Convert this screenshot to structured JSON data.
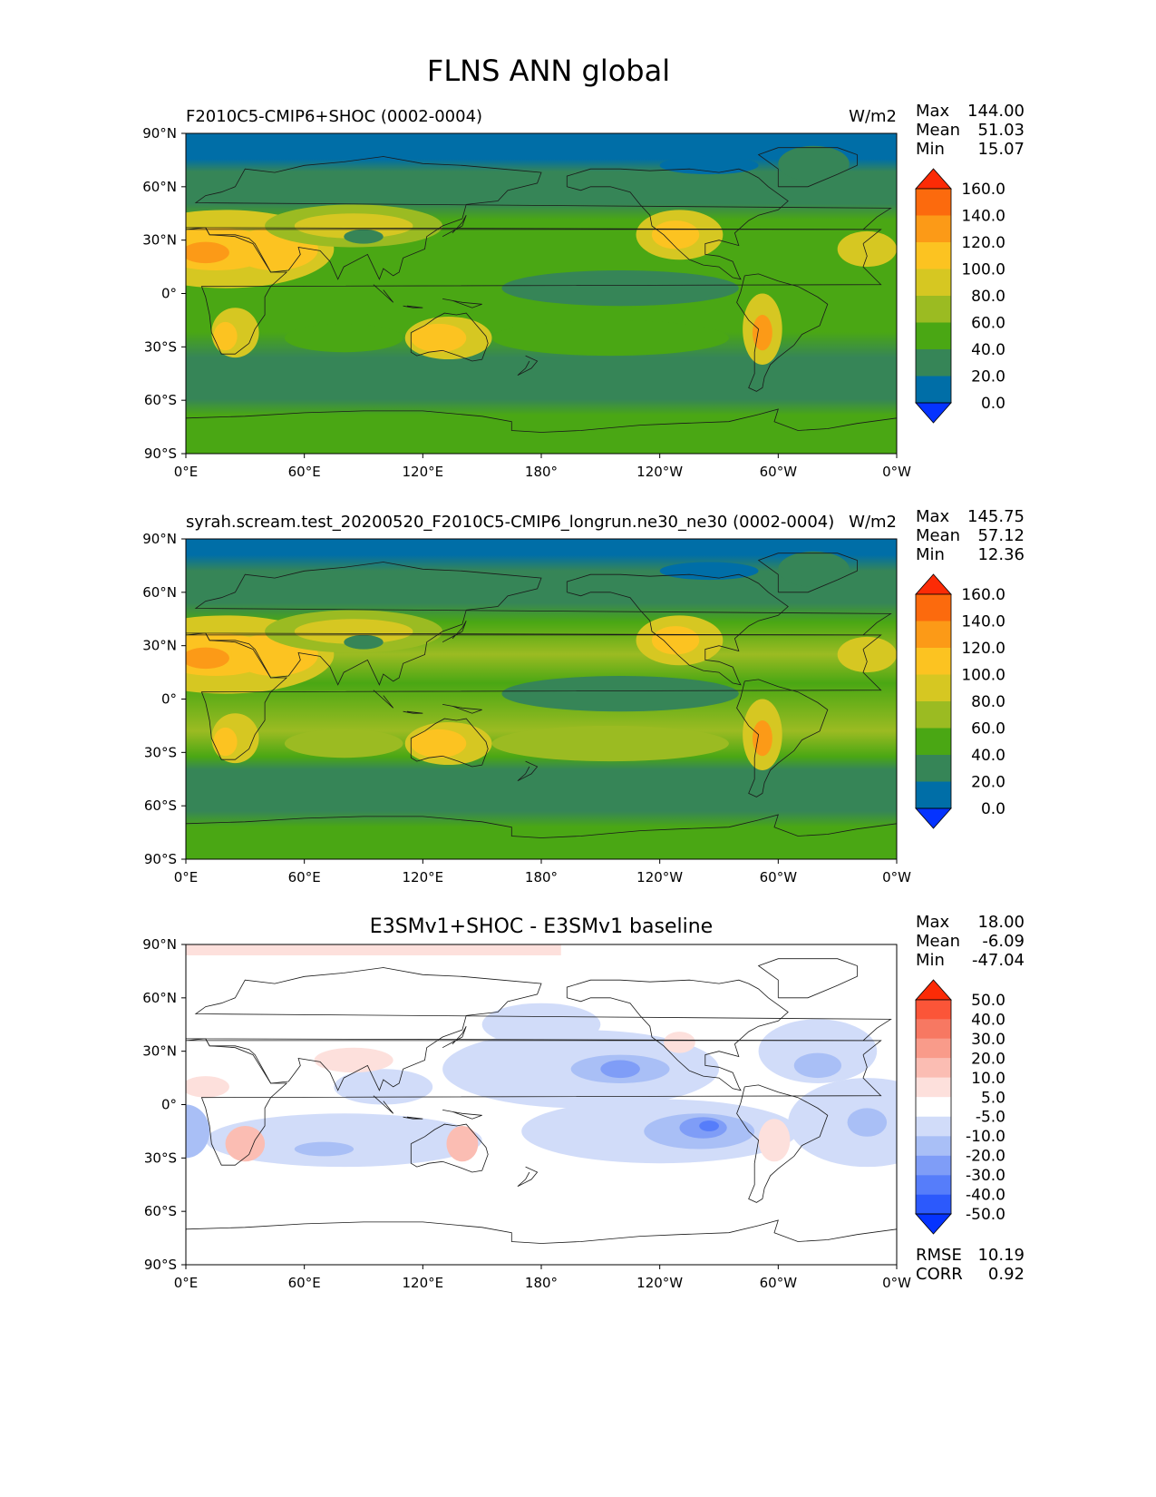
{
  "figure": {
    "title": "FLNS ANN global"
  },
  "map_ticks": {
    "x": [
      "0°E",
      "60°E",
      "120°E",
      "180°",
      "120°W",
      "60°W",
      "0°W"
    ],
    "y": [
      "90°N",
      "60°N",
      "30°N",
      "0°",
      "30°S",
      "60°S",
      "90°S"
    ]
  },
  "chart_data": [
    {
      "type": "heatmap",
      "title": "F2010C5-CMIP6+SHOC (0002-0004)",
      "units": "W/m2",
      "stats": {
        "Max": "144.00",
        "Mean": "51.03",
        "Min": "15.07"
      },
      "stat_labels": [
        "Max",
        "Mean",
        "Min"
      ],
      "x_range": [
        0,
        360
      ],
      "y_range": [
        -90,
        90
      ],
      "colorbar": {
        "levels": [
          "0.0",
          "20.0",
          "40.0",
          "60.0",
          "80.0",
          "100.0",
          "120.0",
          "140.0",
          "160.0"
        ],
        "colors": [
          "#0533ff",
          "#006ea7",
          "#368557",
          "#4aa714",
          "#9bbb22",
          "#d6c722",
          "#fcc321",
          "#fc9a17",
          "#fc6a0d",
          "#fc2b06"
        ]
      }
    },
    {
      "type": "heatmap",
      "title": "syrah.scream.test_20200520_F2010C5-CMIP6_longrun.ne30_ne30 (0002-0004)",
      "units": "W/m2",
      "stats": {
        "Max": "145.75",
        "Mean": "57.12",
        "Min": "12.36"
      },
      "stat_labels": [
        "Max",
        "Mean",
        "Min"
      ],
      "x_range": [
        0,
        360
      ],
      "y_range": [
        -90,
        90
      ],
      "colorbar": {
        "levels": [
          "0.0",
          "20.0",
          "40.0",
          "60.0",
          "80.0",
          "100.0",
          "120.0",
          "140.0",
          "160.0"
        ],
        "colors": [
          "#0533ff",
          "#006ea7",
          "#368557",
          "#4aa714",
          "#9bbb22",
          "#d6c722",
          "#fcc321",
          "#fc9a17",
          "#fc6a0d",
          "#fc2b06"
        ]
      }
    },
    {
      "type": "heatmap",
      "title": "E3SMv1+SHOC - E3SMv1 baseline",
      "units": "",
      "stats": {
        "Max": "18.00",
        "Mean": "-6.09",
        "Min": "-47.04"
      },
      "stat_labels": [
        "Max",
        "Mean",
        "Min"
      ],
      "metrics": {
        "RMSE": "10.19",
        "CORR": "0.92"
      },
      "x_range": [
        0,
        360
      ],
      "y_range": [
        -90,
        90
      ],
      "colorbar": {
        "levels": [
          "-50.0",
          "-40.0",
          "-30.0",
          "-20.0",
          "-10.0",
          "-5.0",
          "5.0",
          "10.0",
          "20.0",
          "30.0",
          "40.0",
          "50.0"
        ],
        "colors": [
          "#0533ff",
          "#2c59fc",
          "#567dfa",
          "#7f9df7",
          "#a9bff6",
          "#d1dcf9",
          "#ffffff",
          "#fde0dc",
          "#fbbdb3",
          "#f99b8a",
          "#f77862",
          "#fb5538",
          "#fc2b06"
        ]
      }
    }
  ]
}
